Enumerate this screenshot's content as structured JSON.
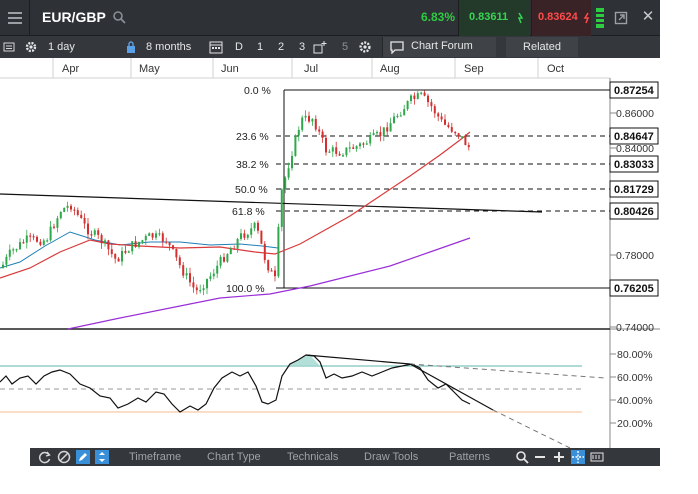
{
  "header": {
    "symbol": "EUR/GBP",
    "change_pct": "6.83%",
    "buy_price": "0.83611",
    "sell_price": "0.83624"
  },
  "toolbar": {
    "interval": "1 day",
    "period": "8 months",
    "range_d": "D",
    "range_1": "1",
    "range_2": "2",
    "range_3": "3",
    "range_5": "5",
    "chart_forum": "Chart Forum",
    "related": "Related"
  },
  "chart": {
    "months": [
      "Apr",
      "May",
      "Jun",
      "Jul",
      "Aug",
      "Sep",
      "Oct"
    ],
    "fib_levels": [
      "0.0 %",
      "23.6 %",
      "38.2 %",
      "50.0 %",
      "61.8 %",
      "100.0 %"
    ],
    "price_axis": [
      "0.86000",
      "0.84000",
      "0.78000",
      "0.74000"
    ],
    "price_tags": [
      "0.87254",
      "0.84647",
      "0.83033",
      "0.81729",
      "0.80426",
      "0.76205"
    ],
    "osc_axis": [
      "80.00%",
      "60.00%",
      "40.00%",
      "20.00%"
    ],
    "colors": {
      "up_candle": "#2ea84a",
      "down_candle": "#d32f2f",
      "ma_red": "#d93a3a",
      "ma_purple": "#9b2fd6",
      "ma_blue": "#1f7fb5",
      "osc_line": "#111111",
      "osc_band_high": "#2a9d8f",
      "osc_band_low": "#f4a261"
    }
  },
  "bottom": {
    "timeframe": "Timeframe",
    "chart_type": "Chart Type",
    "technicals": "Technicals",
    "draw_tools": "Draw Tools",
    "patterns": "Patterns"
  }
}
